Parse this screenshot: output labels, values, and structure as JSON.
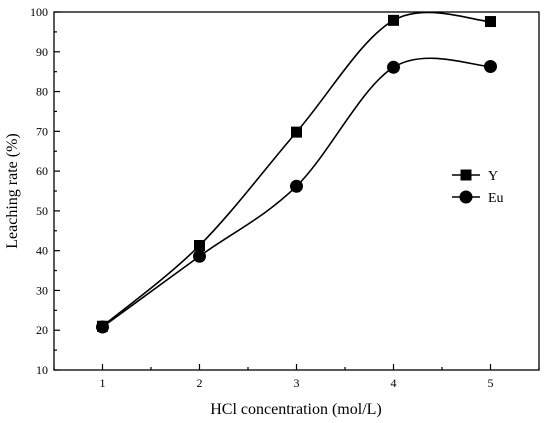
{
  "chart_data": {
    "type": "line",
    "xlabel": "HCl concentration (mol/L)",
    "ylabel": "Leaching rate (%)",
    "xlim": [
      0.5,
      5.5
    ],
    "ylim": [
      10,
      100
    ],
    "x_ticks": [
      "1",
      "2",
      "3",
      "4",
      "5"
    ],
    "y_ticks": [
      "10",
      "20",
      "30",
      "40",
      "50",
      "60",
      "70",
      "80",
      "90",
      "100"
    ],
    "x": [
      1,
      2,
      3,
      4,
      5
    ],
    "series": [
      {
        "name": "Y",
        "marker": "square",
        "values": [
          21.0,
          41.3,
          69.8,
          97.9,
          97.6
        ]
      },
      {
        "name": "Eu",
        "marker": "circle",
        "values": [
          20.8,
          38.6,
          56.2,
          86.1,
          86.3
        ]
      }
    ],
    "legend_position": "right-middle",
    "grid": false,
    "line_color": "#000000"
  }
}
